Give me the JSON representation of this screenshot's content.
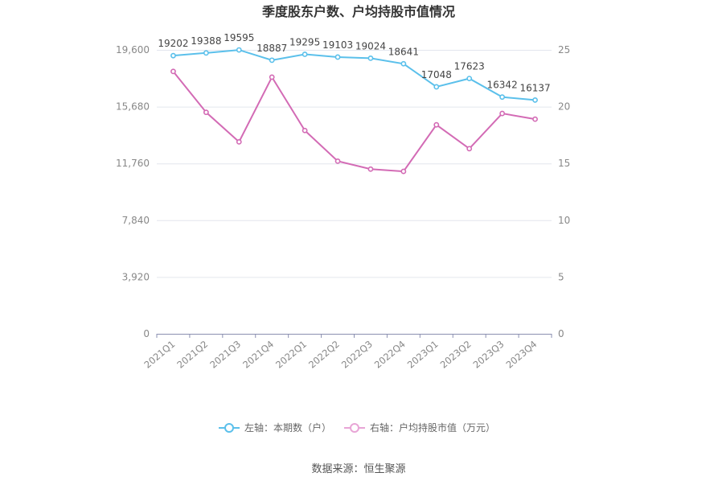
{
  "chart_data": {
    "type": "line",
    "title": "季度股东户数、户均持股市值情况",
    "categories": [
      "2021Q1",
      "2021Q2",
      "2021Q3",
      "2021Q4",
      "2022Q1",
      "2022Q2",
      "2022Q3",
      "2022Q4",
      "2023Q1",
      "2023Q2",
      "2023Q3",
      "2023Q4"
    ],
    "left_axis": {
      "ylim": [
        0,
        19600
      ],
      "ticks": [
        "0",
        "3,920",
        "7,840",
        "11,760",
        "15,680",
        "19,600"
      ]
    },
    "right_axis": {
      "ylim": [
        0,
        25
      ],
      "ticks": [
        "0",
        "5",
        "10",
        "15",
        "20",
        "25"
      ]
    },
    "series": [
      {
        "name": "左轴：本期数（户）",
        "axis": "left",
        "color": "#5bc0eb",
        "values": [
          19202,
          19388,
          19595,
          18887,
          19295,
          19103,
          19024,
          18641,
          17048,
          17623,
          16342,
          16137
        ],
        "labels": [
          "19202",
          "19388",
          "19595",
          "18887",
          "19295",
          "19103",
          "19024",
          "18641",
          "17048",
          "17623",
          "16342",
          "16137"
        ]
      },
      {
        "name": "右轴：户均持股市值（万元）",
        "axis": "right",
        "color": "#d36bb5",
        "values": [
          23.1,
          19.5,
          16.9,
          22.6,
          17.9,
          15.2,
          14.5,
          14.3,
          18.4,
          16.3,
          19.4,
          18.9
        ]
      }
    ],
    "grid": true,
    "legend_position": "bottom"
  },
  "source": "数据来源：恒生聚源"
}
